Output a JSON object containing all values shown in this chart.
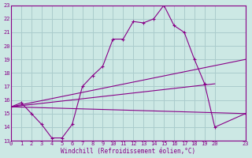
{
  "bg_color": "#cce8e4",
  "grid_color": "#aacccc",
  "line_color": "#880088",
  "xlabel": "Windchill (Refroidissement éolien,°C)",
  "xlim": [
    0,
    23
  ],
  "ylim": [
    13,
    23
  ],
  "xticks": [
    0,
    1,
    2,
    3,
    4,
    5,
    6,
    7,
    8,
    9,
    10,
    11,
    12,
    13,
    14,
    15,
    16,
    17,
    18,
    19,
    20,
    23
  ],
  "yticks": [
    13,
    14,
    15,
    16,
    17,
    18,
    19,
    20,
    21,
    22,
    23
  ],
  "series1_x": [
    0,
    1,
    2,
    3,
    4,
    5,
    6,
    7,
    8,
    9,
    10,
    11,
    12,
    13,
    14,
    15,
    16,
    17,
    18,
    19,
    20,
    23
  ],
  "series1_y": [
    15.5,
    15.8,
    15.0,
    14.2,
    13.2,
    13.2,
    14.2,
    17.0,
    17.8,
    18.5,
    20.5,
    20.5,
    21.8,
    21.7,
    22.0,
    23.0,
    21.5,
    21.0,
    19.0,
    17.2,
    14.0,
    15.0
  ],
  "series2_x": [
    0,
    23
  ],
  "series2_y": [
    15.5,
    19.0
  ],
  "series3_x": [
    0,
    23
  ],
  "series3_y": [
    15.5,
    15.0
  ],
  "series4_x": [
    0,
    20
  ],
  "series4_y": [
    15.5,
    17.2
  ]
}
